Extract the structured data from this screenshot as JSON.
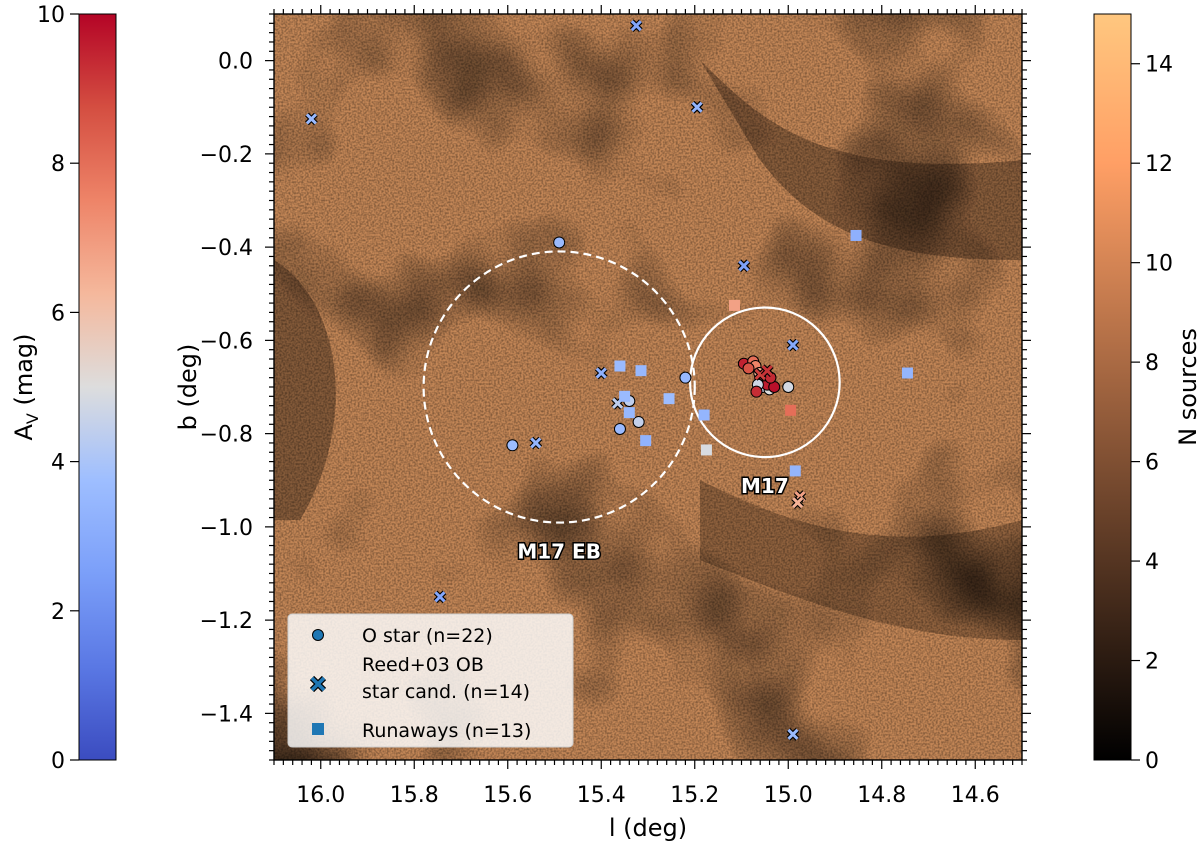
{
  "chart_data": {
    "type": "scatter",
    "xlabel": "l (deg)",
    "ylabel": "b (deg)",
    "xlim": [
      16.1,
      14.5
    ],
    "ylim": [
      -1.5,
      0.1
    ],
    "x_ticks": [
      16.0,
      15.8,
      15.6,
      15.4,
      15.2,
      15.0,
      14.8,
      14.6
    ],
    "y_ticks": [
      0.0,
      -0.2,
      -0.4,
      -0.6,
      -0.8,
      -1.0,
      -1.2,
      -1.4
    ],
    "x_tick_labels": [
      "16.0",
      "15.8",
      "15.6",
      "15.4",
      "15.2",
      "15.0",
      "14.8",
      "14.6"
    ],
    "y_tick_labels": [
      "0.0",
      "−0.2",
      "−0.4",
      "−0.6",
      "−0.8",
      "−1.0",
      "−1.2",
      "−1.4"
    ],
    "background": "density map of N sources",
    "colorbar_left": {
      "label_main": "A",
      "label_sub": "V",
      "label_unit": " (mag)",
      "range": [
        0,
        10
      ],
      "ticks": [
        "0",
        "2",
        "4",
        "6",
        "8",
        "10"
      ],
      "colormap": "coolwarm"
    },
    "colorbar_right": {
      "label": "N sources",
      "range": [
        0,
        15
      ],
      "ticks": [
        "0",
        "2",
        "4",
        "6",
        "8",
        "10",
        "12",
        "14"
      ],
      "colormap": "copper"
    },
    "regions": [
      {
        "name": "M17 EB",
        "l": 15.49,
        "b": -0.7,
        "radius_deg": 0.29,
        "style": "dashed"
      },
      {
        "name": "M17",
        "l": 15.05,
        "b": -0.69,
        "radius_deg": 0.16,
        "style": "solid"
      }
    ],
    "legend": {
      "location": "lower-left",
      "entries": [
        {
          "marker": "circle",
          "lines": [
            "O star (n=22)"
          ]
        },
        {
          "marker": "x",
          "lines": [
            "Reed+03 OB",
            "star cand. (n=14)"
          ]
        },
        {
          "marker": "square",
          "lines": [
            "Runaways (n=13)"
          ]
        }
      ]
    },
    "series": [
      {
        "name": "O star (n=22)",
        "marker": "circle",
        "points": [
          {
            "l": 15.49,
            "b": -0.39,
            "av": 3.6
          },
          {
            "l": 15.22,
            "b": -0.68,
            "av": 3.5
          },
          {
            "l": 15.36,
            "b": -0.79,
            "av": 3.6
          },
          {
            "l": 15.32,
            "b": -0.775,
            "av": 4.5
          },
          {
            "l": 15.59,
            "b": -0.825,
            "av": 3.7
          },
          {
            "l": 15.34,
            "b": -0.73,
            "av": 4.4
          },
          {
            "l": 15.095,
            "b": -0.65,
            "av": 9.5
          },
          {
            "l": 15.075,
            "b": -0.645,
            "av": 8.0
          },
          {
            "l": 15.07,
            "b": -0.655,
            "av": 7.5
          },
          {
            "l": 15.06,
            "b": -0.68,
            "av": 9.0
          },
          {
            "l": 15.05,
            "b": -0.69,
            "av": 9.2
          },
          {
            "l": 15.055,
            "b": -0.7,
            "av": 4.6
          },
          {
            "l": 15.04,
            "b": -0.705,
            "av": 5.0
          },
          {
            "l": 15.045,
            "b": -0.695,
            "av": 9.6
          },
          {
            "l": 15.03,
            "b": -0.7,
            "av": 9.8
          },
          {
            "l": 15.065,
            "b": -0.695,
            "av": 4.7
          },
          {
            "l": 15.0,
            "b": -0.7,
            "av": 4.8
          },
          {
            "l": 15.085,
            "b": -0.66,
            "av": 8.6
          },
          {
            "l": 15.068,
            "b": -0.71,
            "av": 9.3
          },
          {
            "l": 15.062,
            "b": -0.67,
            "av": 6.5
          },
          {
            "l": 15.052,
            "b": -0.675,
            "av": 9.1
          },
          {
            "l": 15.038,
            "b": -0.68,
            "av": 9.4
          }
        ]
      },
      {
        "name": "Reed+03 OB star cand. (n=14)",
        "marker": "x",
        "points": [
          {
            "l": 16.02,
            "b": -0.125,
            "av": 3.6
          },
          {
            "l": 15.325,
            "b": 0.075,
            "av": 2.8
          },
          {
            "l": 15.195,
            "b": -0.1,
            "av": 3.4
          },
          {
            "l": 15.095,
            "b": -0.44,
            "av": 2.6
          },
          {
            "l": 14.99,
            "b": -0.61,
            "av": 2.9
          },
          {
            "l": 15.4,
            "b": -0.67,
            "av": 3.2
          },
          {
            "l": 15.54,
            "b": -0.82,
            "av": 3.4
          },
          {
            "l": 15.745,
            "b": -1.15,
            "av": 2.8
          },
          {
            "l": 14.99,
            "b": -1.445,
            "av": 3.6
          },
          {
            "l": 14.975,
            "b": -0.935,
            "av": 6.8
          },
          {
            "l": 14.98,
            "b": -0.948,
            "av": 6.4
          },
          {
            "l": 15.06,
            "b": -0.673,
            "av": 9.0
          },
          {
            "l": 15.045,
            "b": -0.665,
            "av": 9.2
          },
          {
            "l": 15.365,
            "b": -0.735,
            "av": 4.4
          }
        ]
      },
      {
        "name": "Runaways (n=13)",
        "marker": "square",
        "points": [
          {
            "l": 14.855,
            "b": -0.375,
            "av": 3.2
          },
          {
            "l": 14.745,
            "b": -0.67,
            "av": 3.4
          },
          {
            "l": 15.115,
            "b": -0.525,
            "av": 6.8
          },
          {
            "l": 15.36,
            "b": -0.655,
            "av": 3.6
          },
          {
            "l": 15.315,
            "b": -0.665,
            "av": 3.5
          },
          {
            "l": 15.35,
            "b": -0.72,
            "av": 3.6
          },
          {
            "l": 15.34,
            "b": -0.755,
            "av": 3.5
          },
          {
            "l": 15.255,
            "b": -0.725,
            "av": 3.7
          },
          {
            "l": 15.18,
            "b": -0.76,
            "av": 3.4
          },
          {
            "l": 15.305,
            "b": -0.815,
            "av": 3.3
          },
          {
            "l": 15.175,
            "b": -0.835,
            "av": 4.9
          },
          {
            "l": 14.995,
            "b": -0.75,
            "av": 8.0
          },
          {
            "l": 14.985,
            "b": -0.88,
            "av": 3.4
          }
        ]
      }
    ]
  }
}
